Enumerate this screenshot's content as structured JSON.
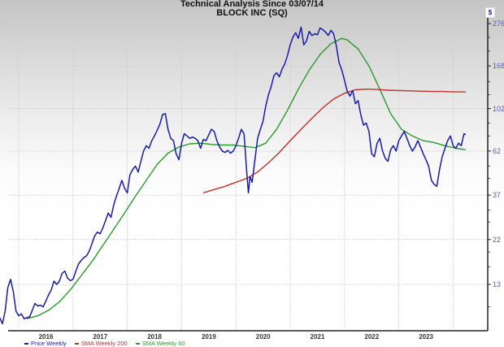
{
  "header": {
    "title": "Technical Analysis Since 03/07/14",
    "subtitle": "BLOCK INC (SQ)",
    "currency_badge": "$"
  },
  "legend": [
    {
      "label": "Price Weekly",
      "color": "#1a1aa8"
    },
    {
      "label": "SMA Weekly 200",
      "color": "#c0302a"
    },
    {
      "label": "SMA Weekly 60",
      "color": "#2a9a2a"
    }
  ],
  "chart_data": {
    "type": "line",
    "title": "Technical Analysis Since 03/07/14",
    "subtitle": "BLOCK INC (SQ)",
    "xlabel": "",
    "ylabel": "$",
    "yscale": "log",
    "ylim": [
      8,
      290
    ],
    "grid": true,
    "legend_position": "bottom-left",
    "x_ticks": [
      "2016",
      "2017",
      "2018",
      "2019",
      "2020",
      "2021",
      "2022",
      "2023"
    ],
    "y_ticks": [
      13,
      22,
      37,
      62,
      102,
      168,
      276
    ],
    "y_tick_labels": [
      "13",
      "22",
      "37",
      "62",
      "102",
      "168",
      "276"
    ],
    "series": [
      {
        "name": "Price Weekly",
        "color": "#1a1aa8",
        "points": [
          [
            2015.4,
            11.8
          ],
          [
            2015.45,
            11.2
          ],
          [
            2015.5,
            11.5
          ],
          [
            2015.55,
            12.1
          ],
          [
            2015.6,
            9.8
          ],
          [
            2015.65,
            8.8
          ],
          [
            2015.7,
            8.2
          ],
          [
            2015.75,
            9.5
          ],
          [
            2015.8,
            12.5
          ],
          [
            2015.85,
            13.8
          ],
          [
            2015.9,
            12.0
          ],
          [
            2015.95,
            9.5
          ],
          [
            2016.0,
            9.0
          ],
          [
            2016.05,
            9.2
          ],
          [
            2016.1,
            8.7
          ],
          [
            2016.15,
            8.8
          ],
          [
            2016.2,
            8.9
          ],
          [
            2016.25,
            9.6
          ],
          [
            2016.3,
            10.4
          ],
          [
            2016.35,
            10.1
          ],
          [
            2016.4,
            10.2
          ],
          [
            2016.45,
            10.0
          ],
          [
            2016.5,
            10.7
          ],
          [
            2016.55,
            11.5
          ],
          [
            2016.6,
            12.2
          ],
          [
            2016.65,
            13.5
          ],
          [
            2016.7,
            13.0
          ],
          [
            2016.75,
            13.5
          ],
          [
            2016.8,
            14.8
          ],
          [
            2016.85,
            15.2
          ],
          [
            2016.9,
            14.0
          ],
          [
            2016.95,
            13.6
          ],
          [
            2017.0,
            13.8
          ],
          [
            2017.05,
            15.1
          ],
          [
            2017.1,
            16.5
          ],
          [
            2017.15,
            17.2
          ],
          [
            2017.2,
            17.8
          ],
          [
            2017.25,
            18.2
          ],
          [
            2017.3,
            19.2
          ],
          [
            2017.35,
            21.0
          ],
          [
            2017.4,
            23.0
          ],
          [
            2017.45,
            24.0
          ],
          [
            2017.5,
            23.5
          ],
          [
            2017.55,
            25.2
          ],
          [
            2017.6,
            27.5
          ],
          [
            2017.65,
            30.0
          ],
          [
            2017.7,
            28.5
          ],
          [
            2017.75,
            33.0
          ],
          [
            2017.8,
            36.5
          ],
          [
            2017.85,
            40.0
          ],
          [
            2017.9,
            44.0
          ],
          [
            2017.95,
            40.0
          ],
          [
            2018.0,
            38.0
          ],
          [
            2018.05,
            47.0
          ],
          [
            2018.1,
            50.0
          ],
          [
            2018.15,
            52.0
          ],
          [
            2018.2,
            48.5
          ],
          [
            2018.25,
            55.0
          ],
          [
            2018.3,
            62.0
          ],
          [
            2018.35,
            66.0
          ],
          [
            2018.4,
            64.0
          ],
          [
            2018.45,
            70.0
          ],
          [
            2018.5,
            74.0
          ],
          [
            2018.55,
            79.0
          ],
          [
            2018.6,
            85.0
          ],
          [
            2018.65,
            95.0
          ],
          [
            2018.7,
            96.0
          ],
          [
            2018.75,
            80.0
          ],
          [
            2018.8,
            72.0
          ],
          [
            2018.85,
            70.0
          ],
          [
            2018.9,
            60.0
          ],
          [
            2018.95,
            56.0
          ],
          [
            2019.0,
            68.0
          ],
          [
            2019.05,
            76.0
          ],
          [
            2019.1,
            74.0
          ],
          [
            2019.15,
            72.0
          ],
          [
            2019.2,
            73.0
          ],
          [
            2019.25,
            72.0
          ],
          [
            2019.3,
            70.0
          ],
          [
            2019.35,
            64.0
          ],
          [
            2019.4,
            71.0
          ],
          [
            2019.45,
            70.0
          ],
          [
            2019.5,
            75.0
          ],
          [
            2019.55,
            80.0
          ],
          [
            2019.6,
            78.0
          ],
          [
            2019.65,
            70.0
          ],
          [
            2019.7,
            65.0
          ],
          [
            2019.75,
            62.0
          ],
          [
            2019.8,
            61.0
          ],
          [
            2019.85,
            62.5
          ],
          [
            2019.9,
            60.5
          ],
          [
            2019.95,
            62.0
          ],
          [
            2020.0,
            66.0
          ],
          [
            2020.05,
            72.0
          ],
          [
            2020.1,
            80.0
          ],
          [
            2020.15,
            76.0
          ],
          [
            2020.2,
            48.0
          ],
          [
            2020.23,
            38.0
          ],
          [
            2020.26,
            46.0
          ],
          [
            2020.3,
            43.0
          ],
          [
            2020.35,
            56.0
          ],
          [
            2020.4,
            72.0
          ],
          [
            2020.45,
            80.0
          ],
          [
            2020.5,
            88.0
          ],
          [
            2020.55,
            105.0
          ],
          [
            2020.6,
            120.0
          ],
          [
            2020.65,
            132.0
          ],
          [
            2020.7,
            150.0
          ],
          [
            2020.75,
            155.0
          ],
          [
            2020.8,
            148.0
          ],
          [
            2020.85,
            162.0
          ],
          [
            2020.9,
            172.0
          ],
          [
            2020.95,
            190.0
          ],
          [
            2021.0,
            215.0
          ],
          [
            2021.05,
            235.0
          ],
          [
            2021.1,
            248.0
          ],
          [
            2021.15,
            232.0
          ],
          [
            2021.2,
            265.0
          ],
          [
            2021.25,
            215.0
          ],
          [
            2021.3,
            225.0
          ],
          [
            2021.35,
            252.0
          ],
          [
            2021.4,
            240.0
          ],
          [
            2021.45,
            245.0
          ],
          [
            2021.5,
            242.0
          ],
          [
            2021.55,
            262.0
          ],
          [
            2021.6,
            257.0
          ],
          [
            2021.65,
            250.0
          ],
          [
            2021.7,
            240.0
          ],
          [
            2021.75,
            255.0
          ],
          [
            2021.8,
            245.0
          ],
          [
            2021.85,
            212.0
          ],
          [
            2021.9,
            175.0
          ],
          [
            2021.95,
            160.0
          ],
          [
            2022.0,
            142.0
          ],
          [
            2022.05,
            125.0
          ],
          [
            2022.1,
            118.0
          ],
          [
            2022.15,
            126.0
          ],
          [
            2022.2,
            108.0
          ],
          [
            2022.25,
            112.0
          ],
          [
            2022.3,
            95.0
          ],
          [
            2022.35,
            84.0
          ],
          [
            2022.4,
            86.0
          ],
          [
            2022.45,
            78.0
          ],
          [
            2022.5,
            60.0
          ],
          [
            2022.55,
            58.0
          ],
          [
            2022.6,
            68.0
          ],
          [
            2022.65,
            72.0
          ],
          [
            2022.7,
            62.0
          ],
          [
            2022.75,
            57.0
          ],
          [
            2022.8,
            55.0
          ],
          [
            2022.85,
            63.0
          ],
          [
            2022.9,
            66.0
          ],
          [
            2022.95,
            62.0
          ],
          [
            2023.0,
            70.0
          ],
          [
            2023.05,
            74.0
          ],
          [
            2023.1,
            78.0
          ],
          [
            2023.15,
            72.0
          ],
          [
            2023.2,
            66.0
          ],
          [
            2023.25,
            62.0
          ],
          [
            2023.3,
            65.0
          ],
          [
            2023.35,
            70.0
          ],
          [
            2023.4,
            65.0
          ],
          [
            2023.45,
            60.0
          ],
          [
            2023.5,
            56.0
          ],
          [
            2023.55,
            52.0
          ],
          [
            2023.6,
            44.0
          ],
          [
            2023.65,
            42.0
          ],
          [
            2023.7,
            41.0
          ],
          [
            2023.75,
            50.0
          ],
          [
            2023.8,
            58.0
          ],
          [
            2023.85,
            64.0
          ],
          [
            2023.9,
            70.0
          ],
          [
            2023.95,
            74.0
          ],
          [
            2024.0,
            66.0
          ],
          [
            2024.05,
            64.0
          ],
          [
            2024.1,
            68.0
          ],
          [
            2024.15,
            66.0
          ],
          [
            2024.2,
            76.0
          ],
          [
            2024.23,
            75.0
          ]
        ]
      },
      {
        "name": "SMA Weekly 200",
        "color": "#c0302a",
        "points": [
          [
            2019.4,
            38.0
          ],
          [
            2019.6,
            39.5
          ],
          [
            2019.8,
            41.0
          ],
          [
            2020.0,
            43.0
          ],
          [
            2020.2,
            45.0
          ],
          [
            2020.4,
            48.5
          ],
          [
            2020.6,
            54.0
          ],
          [
            2020.8,
            61.0
          ],
          [
            2021.0,
            70.0
          ],
          [
            2021.2,
            80.0
          ],
          [
            2021.4,
            91.0
          ],
          [
            2021.6,
            103.0
          ],
          [
            2021.8,
            114.0
          ],
          [
            2022.0,
            122.0
          ],
          [
            2022.2,
            127.0
          ],
          [
            2022.4,
            128.0
          ],
          [
            2022.6,
            127.5
          ],
          [
            2022.8,
            126.5
          ],
          [
            2023.0,
            126.0
          ],
          [
            2023.2,
            125.5
          ],
          [
            2023.4,
            125.0
          ],
          [
            2023.6,
            124.5
          ],
          [
            2023.8,
            124.5
          ],
          [
            2024.0,
            124.0
          ],
          [
            2024.23,
            124.0
          ]
        ]
      },
      {
        "name": "SMA Weekly 60",
        "color": "#2a9a2a",
        "points": [
          [
            2016.15,
            8.7
          ],
          [
            2016.35,
            9.0
          ],
          [
            2016.55,
            9.6
          ],
          [
            2016.75,
            10.6
          ],
          [
            2016.95,
            12.2
          ],
          [
            2017.15,
            14.4
          ],
          [
            2017.35,
            17.0
          ],
          [
            2017.55,
            20.5
          ],
          [
            2017.75,
            24.8
          ],
          [
            2017.95,
            30.0
          ],
          [
            2018.15,
            36.5
          ],
          [
            2018.35,
            44.0
          ],
          [
            2018.55,
            53.0
          ],
          [
            2018.75,
            60.5
          ],
          [
            2018.95,
            65.0
          ],
          [
            2019.15,
            67.5
          ],
          [
            2019.35,
            68.0
          ],
          [
            2019.55,
            67.0
          ],
          [
            2019.75,
            66.5
          ],
          [
            2019.95,
            66.5
          ],
          [
            2020.15,
            65.5
          ],
          [
            2020.35,
            64.5
          ],
          [
            2020.55,
            68.0
          ],
          [
            2020.75,
            80.0
          ],
          [
            2020.95,
            100.0
          ],
          [
            2021.15,
            128.0
          ],
          [
            2021.35,
            160.0
          ],
          [
            2021.55,
            192.0
          ],
          [
            2021.75,
            218.0
          ],
          [
            2021.95,
            232.0
          ],
          [
            2022.05,
            228.0
          ],
          [
            2022.25,
            205.0
          ],
          [
            2022.45,
            168.0
          ],
          [
            2022.65,
            128.0
          ],
          [
            2022.85,
            96.0
          ],
          [
            2023.05,
            80.0
          ],
          [
            2023.25,
            74.0
          ],
          [
            2023.45,
            70.0
          ],
          [
            2023.65,
            68.5
          ],
          [
            2023.85,
            66.0
          ],
          [
            2024.05,
            64.0
          ],
          [
            2024.23,
            63.0
          ]
        ]
      }
    ]
  }
}
